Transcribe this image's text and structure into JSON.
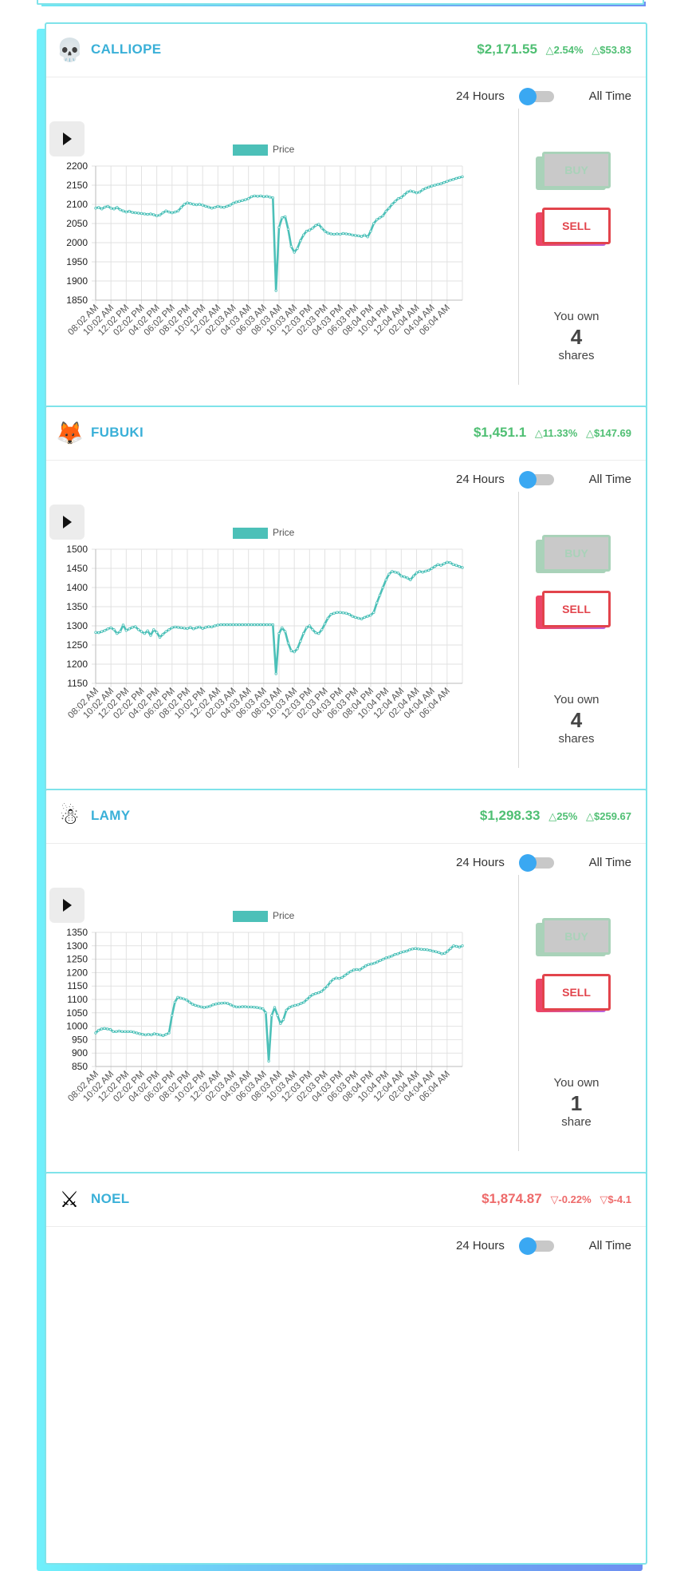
{
  "cards": [
    {
      "name": "CALLIOPE",
      "avatar_icon": "skull-icon",
      "avatar_glyph": "💀",
      "price": "$2,171.55",
      "pct_change": "△2.54%",
      "abs_change": "△$53.83",
      "trend": "up",
      "toggle_left": "24 Hours",
      "toggle_right": "All Time",
      "legend_label": "Price",
      "buy_label": "BUY",
      "sell_label": "SELL",
      "own_label": "You own",
      "own_count": "4",
      "own_unit": "shares",
      "chart_data": {
        "type": "line",
        "series": [
          {
            "name": "Price",
            "values": [
              2090,
              2092,
              2088,
              2093,
              2095,
              2090,
              2088,
              2092,
              2086,
              2083,
              2080,
              2082,
              2079,
              2078,
              2077,
              2076,
              2075,
              2074,
              2075,
              2073,
              2070,
              2072,
              2078,
              2083,
              2080,
              2078,
              2080,
              2083,
              2092,
              2100,
              2104,
              2102,
              2100,
              2099,
              2100,
              2098,
              2095,
              2093,
              2090,
              2092,
              2095,
              2093,
              2092,
              2095,
              2098,
              2103,
              2106,
              2108,
              2110,
              2112,
              2115,
              2120,
              2122,
              2121,
              2122,
              2120,
              2121,
              2119,
              2117,
              1875,
              2040,
              2065,
              2068,
              2035,
              1990,
              1975,
              1985,
              2005,
              2020,
              2030,
              2033,
              2038,
              2045,
              2048,
              2038,
              2030,
              2025,
              2023,
              2022,
              2023,
              2022,
              2024,
              2023,
              2022,
              2020,
              2019,
              2018,
              2016,
              2020,
              2015,
              2030,
              2050,
              2060,
              2065,
              2070,
              2082,
              2090,
              2100,
              2108,
              2115,
              2118,
              2125,
              2132,
              2135,
              2133,
              2130,
              2132,
              2138,
              2142,
              2145,
              2148,
              2150,
              2152,
              2154,
              2157,
              2160,
              2163,
              2165,
              2168,
              2170,
              2172
            ]
          }
        ],
        "x_ticks": [
          "08:02 AM",
          "10:02 AM",
          "12:02 PM",
          "02:02 PM",
          "04:02 PM",
          "06:02 PM",
          "08:02 PM",
          "10:02 PM",
          "12:02 AM",
          "02:03 AM",
          "04:03 AM",
          "06:03 AM",
          "08:03 AM",
          "10:03 AM",
          "12:03 PM",
          "02:03 PM",
          "04:03 PM",
          "06:03 PM",
          "08:04 PM",
          "10:04 PM",
          "12:04 AM",
          "02:04 AM",
          "04:04 AM",
          "06:04 AM"
        ],
        "y_ticks": [
          1850,
          1900,
          1950,
          2000,
          2050,
          2100,
          2150,
          2200
        ],
        "ylim": [
          1850,
          2200
        ],
        "grid": true,
        "legend": "top-center",
        "color": "#4cc0b8"
      }
    },
    {
      "name": "FUBUKI",
      "avatar_icon": "fox-icon",
      "avatar_glyph": "🦊",
      "price": "$1,451.1",
      "pct_change": "△11.33%",
      "abs_change": "△$147.69",
      "trend": "up",
      "toggle_left": "24 Hours",
      "toggle_right": "All Time",
      "legend_label": "Price",
      "buy_label": "BUY",
      "sell_label": "SELL",
      "own_label": "You own",
      "own_count": "4",
      "own_unit": "shares",
      "chart_data": {
        "type": "line",
        "series": [
          {
            "name": "Price",
            "values": [
              1283,
              1282,
              1285,
              1288,
              1292,
              1295,
              1290,
              1280,
              1285,
              1302,
              1288,
              1292,
              1296,
              1298,
              1290,
              1285,
              1280,
              1287,
              1275,
              1290,
              1283,
              1270,
              1278,
              1285,
              1290,
              1295,
              1297,
              1296,
              1295,
              1294,
              1293,
              1296,
              1292,
              1295,
              1297,
              1293,
              1296,
              1298,
              1297,
              1300,
              1302,
              1303,
              1303,
              1303,
              1303,
              1303,
              1303,
              1303,
              1303,
              1303,
              1303,
              1303,
              1303,
              1303,
              1303,
              1303,
              1303,
              1303,
              1303,
              1175,
              1280,
              1295,
              1285,
              1255,
              1235,
              1232,
              1240,
              1260,
              1280,
              1295,
              1300,
              1290,
              1282,
              1280,
              1290,
              1305,
              1320,
              1330,
              1333,
              1335,
              1335,
              1334,
              1333,
              1330,
              1325,
              1322,
              1320,
              1318,
              1322,
              1325,
              1328,
              1335,
              1360,
              1380,
              1400,
              1420,
              1435,
              1442,
              1440,
              1438,
              1430,
              1428,
              1425,
              1420,
              1430,
              1438,
              1442,
              1440,
              1443,
              1445,
              1450,
              1455,
              1460,
              1458,
              1462,
              1466,
              1465,
              1460,
              1458,
              1455,
              1452
            ]
          }
        ],
        "x_ticks": [
          "08:02 AM",
          "10:02 AM",
          "12:02 PM",
          "02:02 PM",
          "04:02 PM",
          "06:02 PM",
          "08:02 PM",
          "10:02 PM",
          "12:02 AM",
          "02:03 AM",
          "04:03 AM",
          "06:03 AM",
          "08:03 AM",
          "10:03 AM",
          "12:03 PM",
          "02:03 PM",
          "04:03 PM",
          "06:03 PM",
          "08:04 PM",
          "10:04 PM",
          "12:04 AM",
          "02:04 AM",
          "04:04 AM",
          "06:04 AM"
        ],
        "y_ticks": [
          1150,
          1200,
          1250,
          1300,
          1350,
          1400,
          1450,
          1500
        ],
        "ylim": [
          1150,
          1500
        ],
        "grid": true,
        "legend": "top-center",
        "color": "#4cc0b8"
      }
    },
    {
      "name": "LAMY",
      "avatar_icon": "snowman-icon",
      "avatar_glyph": "☃",
      "price": "$1,298.33",
      "pct_change": "△25%",
      "abs_change": "△$259.67",
      "trend": "up",
      "toggle_left": "24 Hours",
      "toggle_right": "All Time",
      "legend_label": "Price",
      "buy_label": "BUY",
      "sell_label": "SELL",
      "own_label": "You own",
      "own_count": "1",
      "own_unit": "share",
      "chart_data": {
        "type": "line",
        "series": [
          {
            "name": "Price",
            "values": [
              975,
              985,
              990,
              992,
              990,
              988,
              980,
              980,
              982,
              980,
              980,
              980,
              980,
              978,
              975,
              972,
              970,
              968,
              970,
              968,
              972,
              970,
              968,
              965,
              970,
              975,
              1040,
              1090,
              1108,
              1105,
              1102,
              1098,
              1090,
              1082,
              1078,
              1075,
              1072,
              1070,
              1072,
              1075,
              1080,
              1083,
              1085,
              1086,
              1087,
              1085,
              1080,
              1075,
              1072,
              1072,
              1073,
              1073,
              1072,
              1072,
              1071,
              1070,
              1068,
              1065,
              1050,
              870,
              1040,
              1070,
              1040,
              1010,
              1025,
              1060,
              1070,
              1075,
              1078,
              1080,
              1085,
              1090,
              1100,
              1110,
              1118,
              1122,
              1125,
              1130,
              1140,
              1150,
              1165,
              1175,
              1180,
              1178,
              1182,
              1190,
              1198,
              1205,
              1210,
              1212,
              1210,
              1218,
              1225,
              1230,
              1232,
              1235,
              1240,
              1245,
              1250,
              1255,
              1258,
              1262,
              1268,
              1270,
              1275,
              1278,
              1280,
              1285,
              1288,
              1290,
              1288,
              1287,
              1286,
              1285,
              1283,
              1280,
              1278,
              1275,
              1270,
              1272,
              1280,
              1290,
              1300,
              1298,
              1295,
              1300
            ]
          }
        ],
        "x_ticks": [
          "08:02 AM",
          "10:02 AM",
          "12:02 PM",
          "02:02 PM",
          "04:02 PM",
          "06:02 PM",
          "08:02 PM",
          "10:02 PM",
          "12:02 AM",
          "02:03 AM",
          "04:03 AM",
          "06:03 AM",
          "08:03 AM",
          "10:03 AM",
          "12:03 PM",
          "02:03 PM",
          "04:03 PM",
          "06:03 PM",
          "08:04 PM",
          "10:04 PM",
          "12:04 AM",
          "02:04 AM",
          "04:04 AM",
          "06:04 AM"
        ],
        "y_ticks": [
          850,
          900,
          950,
          1000,
          1050,
          1100,
          1150,
          1200,
          1250,
          1300,
          1350
        ],
        "ylim": [
          850,
          1350
        ],
        "grid": true,
        "legend": "top-center",
        "color": "#4cc0b8"
      }
    },
    {
      "name": "NOEL",
      "avatar_icon": "crossed-swords-icon",
      "avatar_glyph": "⚔",
      "price": "$1,874.87",
      "pct_change": "▽-0.22%",
      "abs_change": "▽$-4.1",
      "trend": "down",
      "toggle_left": "24 Hours",
      "toggle_right": "All Time"
    }
  ]
}
